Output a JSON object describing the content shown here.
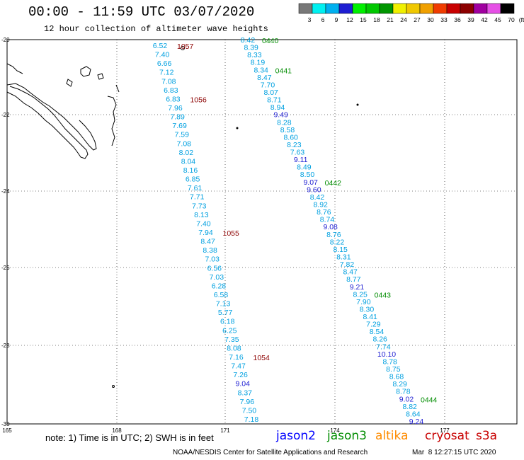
{
  "header": {
    "title": "00:00 - 11:59 UTC 03/07/2020",
    "subtitle": "12 hour collection of altimeter wave heights"
  },
  "scale": {
    "labels": [
      "3",
      "6",
      "9",
      "12",
      "15",
      "18",
      "21",
      "24",
      "27",
      "30",
      "33",
      "36",
      "39",
      "42",
      "45",
      "70"
    ],
    "unit": "(ft)",
    "colors": [
      "#787878",
      "#00f0f0",
      "#00b0f0",
      "#1e1ed2",
      "#00f000",
      "#00c800",
      "#009600",
      "#f0f000",
      "#f0c800",
      "#f0a000",
      "#f03c00",
      "#c80000",
      "#8c0000",
      "#a000a0",
      "#e650e6",
      "#000000"
    ]
  },
  "axes": {
    "lon": [
      "165",
      "168",
      "171",
      "174",
      "177"
    ],
    "lat": [
      "-20",
      "-22",
      "-24",
      "-26",
      "-28",
      "-30"
    ]
  },
  "track_a": {
    "values": [
      "6.52",
      "7.40",
      "6.66",
      "7.12",
      "7.08",
      "6.83",
      "6.83",
      "7.96",
      "7.89",
      "7.69",
      "7.59",
      "7.08",
      "8.02",
      "8.04",
      "8.16",
      "6.85",
      "7.61",
      "7.71",
      "7.73",
      "8.13",
      "7.40",
      "7.94",
      "8.47",
      "8.38",
      "7.03",
      "6.56",
      "7.03",
      "6.28",
      "6.58",
      "7.13",
      "5.77",
      "6.18",
      "6.25",
      "7.35",
      "8.08",
      "7.16",
      "7.47",
      "7.26",
      "9.04",
      "8.37",
      "7.96",
      "7.50",
      "7.18"
    ],
    "times": [
      {
        "text": "1057",
        "row": 0
      },
      {
        "text": "1056",
        "row": 6
      },
      {
        "text": "1055",
        "row": 21
      },
      {
        "text": "1054",
        "row": 35
      }
    ]
  },
  "track_b": {
    "values": [
      "8.42",
      "8.39",
      "8.33",
      "8.19",
      "8.34",
      "8.47",
      "7.70",
      "8.07",
      "8.71",
      "8.94",
      "9.49",
      "8.28",
      "8.58",
      "8.60",
      "8.23",
      "7.63",
      "9.11",
      "8.49",
      "8.50",
      "9.07",
      "9.60",
      "8.42",
      "8.92",
      "8.76",
      "8.74",
      "9.08",
      "8.76",
      "8.22",
      "8.15",
      "8.31",
      "7.82",
      "8.47",
      "8.77",
      "9.21",
      "8.25",
      "7.90",
      "8.30",
      "8.41",
      "7.29",
      "8.54",
      "8.26",
      "7.74",
      "10.10",
      "8.78",
      "8.75",
      "8.68",
      "8.29",
      "8.78",
      "9.02",
      "8.82",
      "8.64",
      "9.24"
    ],
    "times": [
      {
        "text": "0440",
        "row": 0
      },
      {
        "text": "0441",
        "row": 4
      },
      {
        "text": "0442",
        "row": 19
      },
      {
        "text": "0443",
        "row": 34
      },
      {
        "text": "0444",
        "row": 48
      }
    ]
  },
  "note": "note: 1) Time is in UTC; 2) SWH is in feet",
  "legend": [
    {
      "name": "jason2",
      "color": "#0000ff",
      "left": 390
    },
    {
      "name": "jason3",
      "color": "#008c00",
      "left": 462
    },
    {
      "name": "altika",
      "color": "#ff8c00",
      "left": 530
    },
    {
      "name": "cryosat",
      "color": "#c80000",
      "left": 600
    },
    {
      "name": "s3a",
      "color": "#c80000",
      "left": 672
    }
  ],
  "footer": "NOAA/NESDIS Center for Satellite Applications and Research",
  "footer_time": "Mar  8 12:27:15 UTC 2020"
}
